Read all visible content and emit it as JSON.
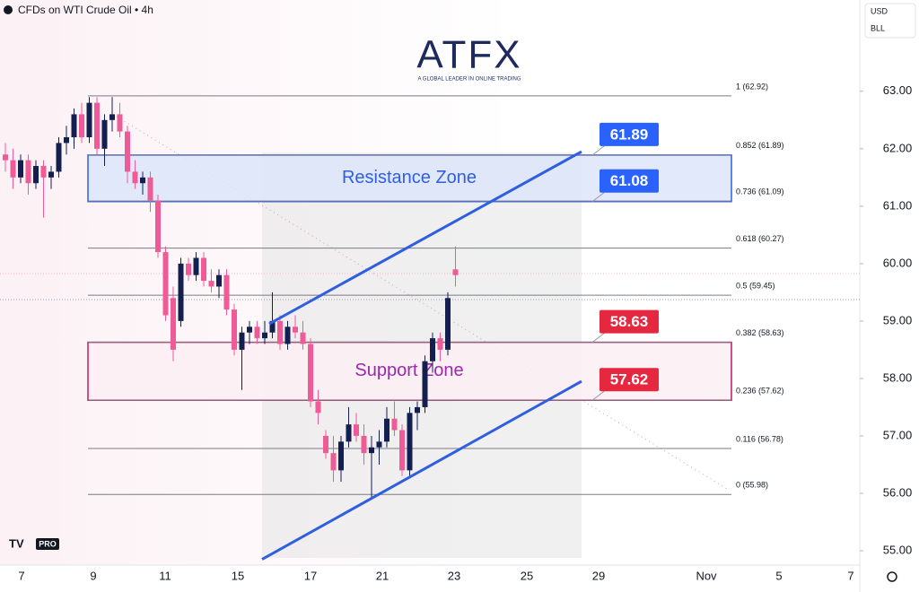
{
  "chart_data": {
    "type": "candlestick",
    "title": "CFDs on WTI Crude Oil • 4h",
    "currency": "USD",
    "unit": "BLL",
    "logo": "ATFX",
    "logo_tagline": "A GLOBAL LEADER IN ONLINE TRADING",
    "badge": "PRO",
    "categories": [
      "7",
      "9",
      "11",
      "15",
      "17",
      "21",
      "23",
      "25",
      "29",
      "Nov",
      "5",
      "7"
    ],
    "ylim": [
      54.75,
      64.59
    ],
    "yticks": [
      {
        "value": 55,
        "label": "55.00"
      },
      {
        "value": 56,
        "label": "56.00"
      },
      {
        "value": 57,
        "label": "57.00"
      },
      {
        "value": 58,
        "label": "58.00"
      },
      {
        "value": 59,
        "label": "59.00"
      },
      {
        "value": 60,
        "label": "60.00"
      },
      {
        "value": 61,
        "label": "61.00"
      },
      {
        "value": 62,
        "label": "62.00"
      },
      {
        "value": 63,
        "label": "63.00"
      }
    ],
    "up_color": "#131f4f",
    "down_color": "#ef5b96",
    "candles": [
      [
        61.9,
        62.1,
        61.6,
        61.8
      ],
      [
        61.8,
        62.0,
        61.3,
        61.5
      ],
      [
        61.5,
        61.9,
        61.4,
        61.8
      ],
      [
        61.8,
        61.9,
        61.2,
        61.4
      ],
      [
        61.4,
        61.8,
        61.3,
        61.7
      ],
      [
        61.7,
        61.8,
        60.8,
        61.5
      ],
      [
        61.5,
        61.7,
        61.3,
        61.6
      ],
      [
        61.6,
        62.2,
        61.5,
        62.1
      ],
      [
        62.1,
        62.4,
        61.9,
        62.2
      ],
      [
        62.2,
        62.7,
        62.0,
        62.6
      ],
      [
        62.6,
        62.8,
        62.1,
        62.2
      ],
      [
        62.2,
        62.9,
        62.1,
        62.8
      ],
      [
        62.8,
        62.9,
        61.9,
        62.0
      ],
      [
        62.0,
        62.6,
        61.7,
        62.5
      ],
      [
        62.5,
        62.9,
        62.3,
        62.6
      ],
      [
        62.6,
        62.8,
        62.2,
        62.3
      ],
      [
        62.3,
        62.4,
        61.4,
        61.6
      ],
      [
        61.6,
        61.8,
        61.3,
        61.4
      ],
      [
        61.4,
        61.6,
        61.2,
        61.5
      ],
      [
        61.5,
        61.6,
        60.9,
        61.1
      ],
      [
        61.1,
        61.2,
        60.1,
        60.2
      ],
      [
        60.2,
        60.3,
        59.0,
        59.1
      ],
      [
        59.4,
        59.6,
        58.3,
        58.5
      ],
      [
        59.0,
        60.1,
        58.9,
        60.0
      ],
      [
        60.0,
        60.1,
        59.7,
        59.8
      ],
      [
        59.8,
        60.2,
        59.7,
        60.1
      ],
      [
        60.1,
        60.2,
        59.6,
        59.7
      ],
      [
        59.7,
        59.9,
        59.5,
        59.6
      ],
      [
        59.6,
        59.9,
        59.4,
        59.8
      ],
      [
        59.8,
        59.9,
        59.1,
        59.2
      ],
      [
        59.2,
        59.3,
        58.4,
        58.5
      ],
      [
        58.5,
        58.9,
        57.8,
        58.8
      ],
      [
        58.8,
        59.0,
        58.6,
        58.9
      ],
      [
        58.9,
        59.0,
        58.6,
        58.7
      ],
      [
        58.7,
        59.0,
        58.6,
        58.8
      ],
      [
        58.8,
        59.5,
        58.7,
        59.0
      ],
      [
        59.0,
        59.1,
        58.5,
        58.6
      ],
      [
        58.6,
        59.0,
        58.5,
        58.9
      ],
      [
        58.9,
        59.1,
        58.7,
        58.8
      ],
      [
        58.8,
        59.0,
        58.5,
        58.6
      ],
      [
        58.6,
        58.7,
        57.5,
        57.6
      ],
      [
        57.6,
        57.8,
        57.2,
        57.4
      ],
      [
        57.0,
        57.1,
        56.6,
        56.7
      ],
      [
        56.7,
        57.0,
        56.2,
        56.4
      ],
      [
        56.4,
        57.0,
        56.2,
        56.9
      ],
      [
        56.9,
        57.5,
        56.8,
        57.2
      ],
      [
        57.2,
        57.4,
        56.9,
        57.0
      ],
      [
        57.0,
        57.2,
        56.5,
        56.7
      ],
      [
        56.7,
        57.0,
        55.9,
        56.8
      ],
      [
        56.8,
        57.1,
        56.5,
        56.9
      ],
      [
        56.9,
        57.5,
        56.8,
        57.3
      ],
      [
        57.3,
        57.6,
        57.0,
        57.1
      ],
      [
        57.1,
        57.2,
        56.3,
        56.4
      ],
      [
        56.4,
        57.5,
        56.3,
        57.4
      ],
      [
        57.4,
        57.6,
        57.1,
        57.5
      ],
      [
        57.5,
        58.4,
        57.4,
        58.3
      ],
      [
        58.3,
        58.8,
        58.1,
        58.7
      ],
      [
        58.7,
        58.8,
        58.3,
        58.5
      ],
      [
        58.5,
        59.5,
        58.4,
        59.4
      ],
      [
        59.9,
        60.3,
        59.6,
        59.8
      ]
    ],
    "fib_levels": [
      {
        "value": 62.92,
        "label": "1 (62.92)"
      },
      {
        "value": 61.89,
        "label": "0.852 (61.89)"
      },
      {
        "value": 61.09,
        "label": "0.736 (61.09)"
      },
      {
        "value": 60.27,
        "label": "0.618 (60.27)"
      },
      {
        "value": 59.45,
        "label": "0.5 (59.45)"
      },
      {
        "value": 58.63,
        "label": "0.382 (58.63)"
      },
      {
        "value": 57.62,
        "label": "0.236 (57.62)"
      },
      {
        "value": 56.78,
        "label": "0.116 (56.78)"
      },
      {
        "value": 55.98,
        "label": "0 (55.98)"
      }
    ],
    "zones": [
      {
        "name": "Resistance Zone",
        "low": 61.08,
        "high": 61.89,
        "color": "#2f5fe0",
        "fill": "#dce5f9"
      },
      {
        "name": "Support Zone",
        "low": 57.62,
        "high": 58.63,
        "color": "#9c27b0",
        "fill": "#fbeff3",
        "border": "#c2185b"
      }
    ],
    "callouts": [
      {
        "value": 61.89,
        "color": "#2962ff"
      },
      {
        "value": 61.08,
        "color": "#2962ff"
      },
      {
        "value": 58.63,
        "color": "#e5273f"
      },
      {
        "value": 57.62,
        "color": "#e5273f"
      }
    ],
    "channel": {
      "color": "#2f5fe0",
      "upper": [
        58.95,
        61.95
      ],
      "lower": [
        54.85,
        57.95
      ]
    }
  }
}
